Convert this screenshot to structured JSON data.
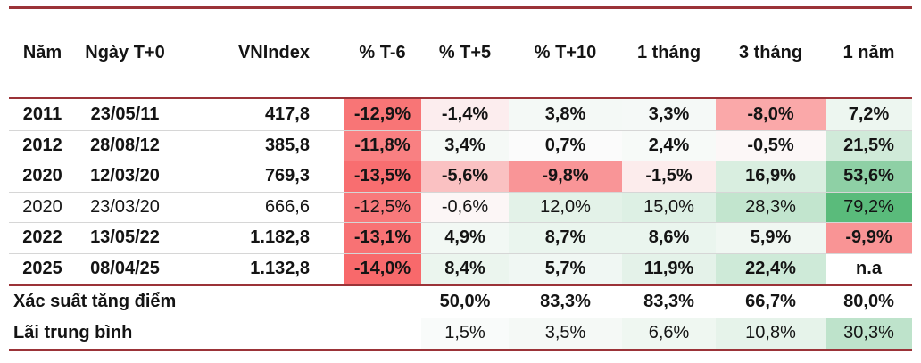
{
  "chart_data": {
    "type": "table",
    "title": "VNIndex drawdown events heatmap table",
    "columns": [
      "Năm",
      "Ngày T+0",
      "VNIndex",
      "% T-6",
      "% T+5",
      "% T+10",
      "1 tháng",
      "3 tháng",
      "1 năm"
    ],
    "rows": [
      {
        "year": "2011",
        "date": "23/05/11",
        "vnindex": "417,8",
        "values": [
          "-12,9%",
          "-1,4%",
          "3,8%",
          "3,3%",
          "-8,0%",
          "7,2%"
        ],
        "bold": true
      },
      {
        "year": "2012",
        "date": "28/08/12",
        "vnindex": "385,8",
        "values": [
          "-11,8%",
          "3,4%",
          "0,7%",
          "2,4%",
          "-0,5%",
          "21,5%"
        ],
        "bold": true
      },
      {
        "year": "2020",
        "date": "12/03/20",
        "vnindex": "769,3",
        "values": [
          "-13,5%",
          "-5,6%",
          "-9,8%",
          "-1,5%",
          "16,9%",
          "53,6%"
        ],
        "bold": true
      },
      {
        "year": "2020",
        "date": "23/03/20",
        "vnindex": "666,6",
        "values": [
          "-12,5%",
          "-0,6%",
          "12,0%",
          "15,0%",
          "28,3%",
          "79,2%"
        ],
        "bold": false
      },
      {
        "year": "2022",
        "date": "13/05/22",
        "vnindex": "1.182,8",
        "values": [
          "-13,1%",
          "4,9%",
          "8,7%",
          "8,6%",
          "5,9%",
          "-9,9%"
        ],
        "bold": true
      },
      {
        "year": "2025",
        "date": "08/04/25",
        "vnindex": "1.132,8",
        "values": [
          "-14,0%",
          "8,4%",
          "5,7%",
          "11,9%",
          "22,4%",
          "n.a"
        ],
        "bold": true
      }
    ],
    "summary_rows": [
      {
        "label": "Xác suất tăng điểm",
        "values": [
          "",
          "50,0%",
          "83,3%",
          "83,3%",
          "66,7%",
          "80,0%"
        ],
        "bold": true,
        "fill": false
      },
      {
        "label": "Lãi trung bình",
        "values": [
          "",
          "1,5%",
          "3,5%",
          "6,6%",
          "10,8%",
          "30,3%"
        ],
        "bold": false,
        "fill": true
      }
    ],
    "color_scale": {
      "negative_anchor": "#F8696B",
      "positive_anchor": "#5ABB7B",
      "neutral": "#FCFCFC",
      "min_value": -14.0,
      "max_value": 79.2
    },
    "rule_color": "#9b3338",
    "separator_color": "#d6d6d6",
    "layout": {
      "grid": false,
      "heatmap_columns_start": 3
    }
  }
}
